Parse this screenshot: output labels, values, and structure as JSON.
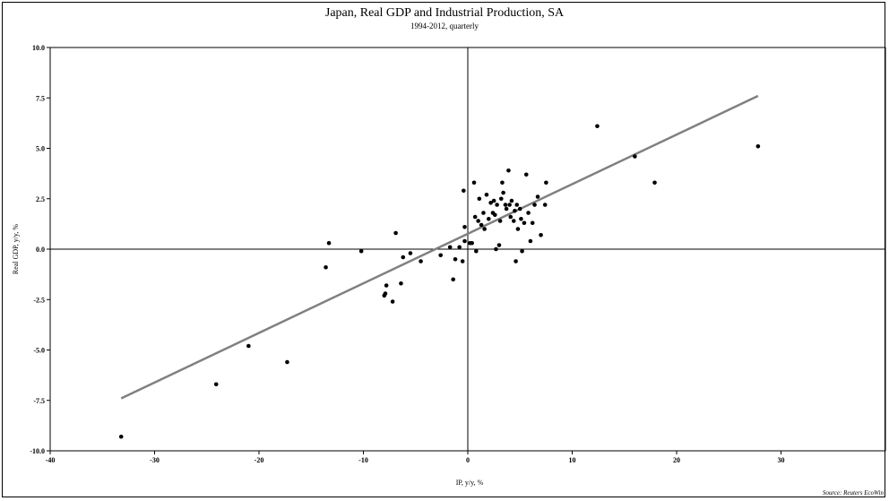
{
  "chart_data": {
    "type": "scatter",
    "title": "Japan, Real GDP and Industrial Production, SA",
    "subtitle": "1994-2012, quarterly",
    "xlabel": "IP, y/y, %",
    "ylabel": "Real GDP, y/y, %",
    "source": "Source: Reuters EcoWin",
    "xlim": [
      -40,
      40
    ],
    "ylim": [
      -10,
      10
    ],
    "xticks": [
      -40,
      -30,
      -20,
      -10,
      0,
      10,
      20,
      30
    ],
    "xtick_labels": [
      "-40",
      "-30",
      "-20",
      "-10",
      "0",
      "10",
      "20",
      "30"
    ],
    "yticks": [
      -10,
      -7.5,
      -5,
      -2.5,
      0,
      2.5,
      5,
      7.5,
      10
    ],
    "ytick_labels": [
      "-10.0",
      "-7.5",
      "-5.0",
      "-2.5",
      "0.0",
      "2.5",
      "5.0",
      "7.5",
      "10.0"
    ],
    "grid": false,
    "zero_lines": true,
    "colors": {
      "points": "#000000",
      "trendline": "#808080",
      "axes": "#000000"
    },
    "points": [
      [
        -33.2,
        -9.3
      ],
      [
        -24.1,
        -6.7
      ],
      [
        -21.0,
        -4.8
      ],
      [
        -17.3,
        -5.6
      ],
      [
        -13.6,
        -0.9
      ],
      [
        -13.3,
        0.3
      ],
      [
        -10.2,
        -0.1
      ],
      [
        -8.0,
        -2.3
      ],
      [
        -7.9,
        -2.2
      ],
      [
        -7.8,
        -1.8
      ],
      [
        -7.2,
        -2.6
      ],
      [
        -6.9,
        0.8
      ],
      [
        -6.4,
        -1.7
      ],
      [
        -6.2,
        -0.4
      ],
      [
        -5.5,
        -0.2
      ],
      [
        -4.5,
        -0.6
      ],
      [
        -2.6,
        -0.3
      ],
      [
        -1.7,
        0.1
      ],
      [
        -1.4,
        -1.5
      ],
      [
        -1.2,
        -0.5
      ],
      [
        -0.8,
        0.1
      ],
      [
        -0.5,
        -0.6
      ],
      [
        -0.3,
        0.4
      ],
      [
        -0.4,
        2.9
      ],
      [
        -0.3,
        1.1
      ],
      [
        0.2,
        0.3
      ],
      [
        0.4,
        0.3
      ],
      [
        0.6,
        3.3
      ],
      [
        0.7,
        1.6
      ],
      [
        0.8,
        -0.1
      ],
      [
        1.0,
        1.4
      ],
      [
        1.1,
        2.5
      ],
      [
        1.3,
        1.2
      ],
      [
        1.5,
        1.8
      ],
      [
        1.6,
        1.0
      ],
      [
        1.8,
        2.7
      ],
      [
        2.0,
        1.5
      ],
      [
        2.2,
        2.3
      ],
      [
        2.4,
        1.8
      ],
      [
        2.5,
        2.4
      ],
      [
        2.6,
        1.7
      ],
      [
        2.7,
        0.0
      ],
      [
        2.8,
        2.2
      ],
      [
        3.0,
        0.2
      ],
      [
        3.1,
        1.4
      ],
      [
        3.2,
        2.5
      ],
      [
        3.3,
        3.3
      ],
      [
        3.4,
        2.8
      ],
      [
        3.6,
        2.2
      ],
      [
        3.7,
        2.0
      ],
      [
        3.9,
        3.9
      ],
      [
        4.0,
        2.2
      ],
      [
        4.1,
        1.6
      ],
      [
        4.2,
        2.4
      ],
      [
        4.4,
        1.4
      ],
      [
        4.5,
        1.9
      ],
      [
        4.6,
        -0.6
      ],
      [
        4.7,
        2.2
      ],
      [
        4.8,
        1.0
      ],
      [
        5.0,
        2.0
      ],
      [
        5.1,
        1.5
      ],
      [
        5.2,
        -0.1
      ],
      [
        5.4,
        1.3
      ],
      [
        5.6,
        3.7
      ],
      [
        5.8,
        1.8
      ],
      [
        6.0,
        0.4
      ],
      [
        6.2,
        1.3
      ],
      [
        6.4,
        2.2
      ],
      [
        6.7,
        2.6
      ],
      [
        7.0,
        0.7
      ],
      [
        7.4,
        2.2
      ],
      [
        7.5,
        3.3
      ],
      [
        12.4,
        6.1
      ],
      [
        16.0,
        4.6
      ],
      [
        17.9,
        3.3
      ],
      [
        27.8,
        5.1
      ]
    ],
    "trendline": {
      "x": [
        -33.2,
        27.8
      ],
      "y": [
        -7.4,
        7.6
      ]
    }
  }
}
